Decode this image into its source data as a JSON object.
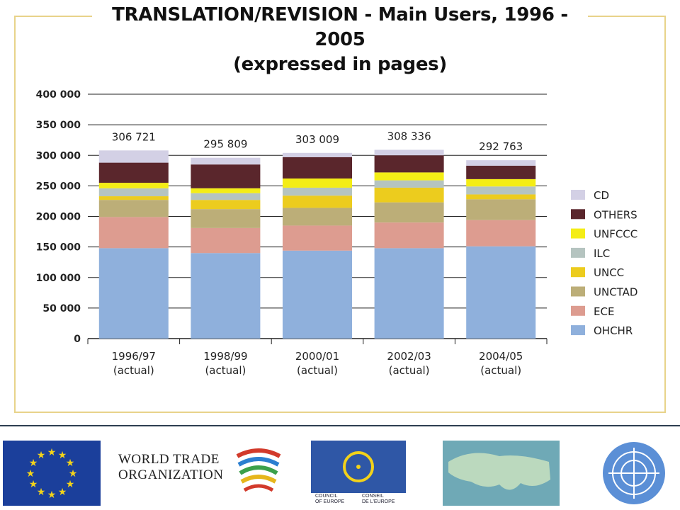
{
  "title_line1": "TRANSLATION/REVISION - Main Users, 1996 - 2005",
  "title_line2": "(expressed in pages)",
  "chart_data": {
    "type": "bar",
    "stacked": true,
    "title": "TRANSLATION/REVISION - Main Users, 1996 - 2005 (expressed in pages)",
    "categories": [
      [
        "1996/97",
        "(actual)"
      ],
      [
        "1998/99",
        "(actual)"
      ],
      [
        "2000/01",
        "(actual)"
      ],
      [
        "2002/03",
        "(actual)"
      ],
      [
        "2004/05",
        "(actual)"
      ]
    ],
    "totals": [
      "306 721",
      "295 809",
      "303 009",
      "308 336",
      "292 763"
    ],
    "ylim": [
      0,
      400000
    ],
    "yticks": [
      "0",
      "50 000",
      "100 000",
      "150 000",
      "200 000",
      "250 000",
      "300 000",
      "350 000",
      "400 000"
    ],
    "grid": true,
    "legend_position": "right",
    "series": [
      {
        "name": "OHCHR",
        "color": "#8fb0dc",
        "values": [
          148000,
          140000,
          144000,
          148000,
          151000
        ]
      },
      {
        "name": "ECE",
        "color": "#dd9c90",
        "values": [
          51000,
          41000,
          41000,
          42000,
          43000
        ]
      },
      {
        "name": "UNCTAD",
        "color": "#bcae78",
        "values": [
          28000,
          31000,
          29000,
          33000,
          34000
        ]
      },
      {
        "name": "UNCC",
        "color": "#eccc1e",
        "values": [
          6000,
          15000,
          20000,
          24000,
          8000
        ]
      },
      {
        "name": "ILC",
        "color": "#b5c4c0",
        "values": [
          13000,
          11000,
          13000,
          12000,
          13000
        ]
      },
      {
        "name": "UNFCCC",
        "color": "#f4ed16",
        "values": [
          9000,
          8000,
          15000,
          13000,
          12000
        ]
      },
      {
        "name": "OTHERS",
        "color": "#5a262c",
        "values": [
          33000,
          39000,
          35000,
          28000,
          22000
        ]
      },
      {
        "name": "CD",
        "color": "#d3d0e5",
        "values": [
          20000,
          11000,
          7000,
          9000,
          9000
        ]
      }
    ]
  },
  "logos": {
    "wto_line1": "WORLD TRADE",
    "wto_line2": "ORGANIZATION",
    "coe_left": "COUNCIL\nOF EUROPE",
    "coe_right": "CONSEIL\nDE L'EUROPE"
  }
}
